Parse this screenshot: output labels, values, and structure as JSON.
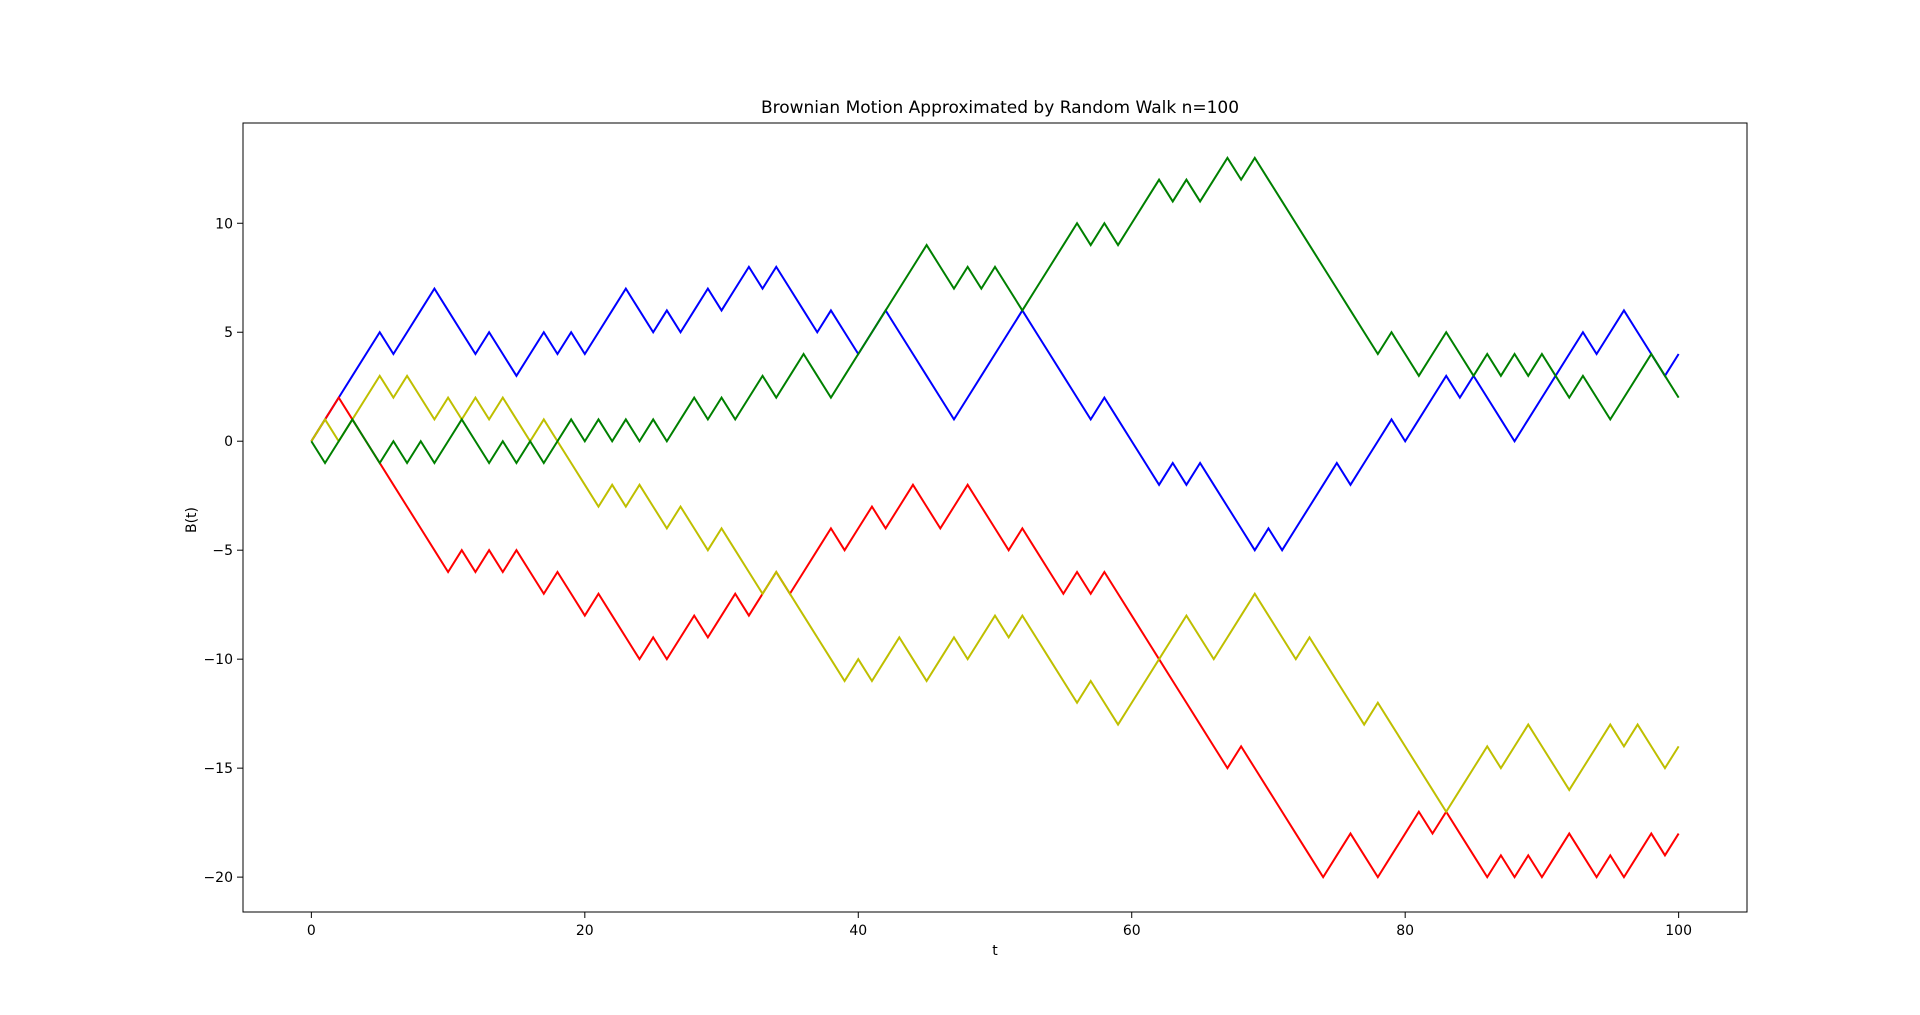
{
  "chart_data": {
    "type": "line",
    "title": "Brownian Motion Approximated by Random Walk n=100",
    "xlabel": "t",
    "ylabel": "B(t)",
    "xlim": [
      -5,
      105
    ],
    "ylim": [
      -21.6,
      14.6
    ],
    "xticks": [
      0,
      20,
      40,
      60,
      80,
      100
    ],
    "yticks": [
      10,
      5,
      0,
      -5,
      -10,
      -15,
      -20
    ],
    "xtick_labels": [
      "0",
      "20",
      "40",
      "60",
      "80",
      "100"
    ],
    "ytick_labels": [
      "10",
      "5",
      "0",
      "−5",
      "−10",
      "−15",
      "−20"
    ],
    "grid": false,
    "legend": "none",
    "series": [
      {
        "color": "#0000ff",
        "values": [
          0,
          1,
          2,
          3,
          4,
          5,
          4,
          5,
          6,
          7,
          6,
          5,
          4,
          5,
          4,
          3,
          4,
          5,
          4,
          5,
          4,
          5,
          6,
          7,
          6,
          5,
          6,
          5,
          6,
          7,
          6,
          7,
          8,
          7,
          8,
          7,
          6,
          5,
          6,
          5,
          4,
          5,
          6,
          5,
          4,
          3,
          2,
          1,
          2,
          3,
          4,
          5,
          6,
          5,
          4,
          3,
          2,
          1,
          2,
          1,
          0,
          -1,
          -2,
          -1,
          -2,
          -1,
          -2,
          -3,
          -4,
          -5,
          -4,
          -5,
          -4,
          -3,
          -2,
          -1,
          -2,
          -1,
          0,
          1,
          0,
          1,
          2,
          3,
          2,
          3,
          2,
          1,
          0,
          1,
          2,
          3,
          4,
          5,
          4,
          5,
          6,
          5,
          4,
          3,
          4
        ]
      },
      {
        "color": "#ff0000",
        "values": [
          0,
          1,
          2,
          1,
          0,
          -1,
          -2,
          -3,
          -4,
          -5,
          -6,
          -5,
          -6,
          -5,
          -6,
          -5,
          -6,
          -7,
          -6,
          -7,
          -8,
          -7,
          -8,
          -9,
          -10,
          -9,
          -10,
          -9,
          -8,
          -9,
          -8,
          -7,
          -8,
          -7,
          -6,
          -7,
          -6,
          -5,
          -4,
          -5,
          -4,
          -3,
          -4,
          -3,
          -2,
          -3,
          -4,
          -3,
          -2,
          -3,
          -4,
          -5,
          -4,
          -5,
          -6,
          -7,
          -6,
          -7,
          -6,
          -7,
          -8,
          -9,
          -10,
          -11,
          -12,
          -13,
          -14,
          -15,
          -14,
          -15,
          -16,
          -17,
          -18,
          -19,
          -20,
          -19,
          -18,
          -19,
          -20,
          -19,
          -18,
          -17,
          -18,
          -17,
          -18,
          -19,
          -20,
          -19,
          -20,
          -19,
          -20,
          -19,
          -18,
          -19,
          -20,
          -19,
          -20,
          -19,
          -18,
          -19,
          -18
        ]
      },
      {
        "color": "#bfbf00",
        "values": [
          0,
          1,
          0,
          1,
          2,
          3,
          2,
          3,
          2,
          1,
          2,
          1,
          2,
          1,
          2,
          1,
          0,
          1,
          0,
          -1,
          -2,
          -3,
          -2,
          -3,
          -2,
          -3,
          -4,
          -3,
          -4,
          -5,
          -4,
          -5,
          -6,
          -7,
          -6,
          -7,
          -8,
          -9,
          -10,
          -11,
          -10,
          -11,
          -10,
          -9,
          -10,
          -11,
          -10,
          -9,
          -10,
          -9,
          -8,
          -9,
          -8,
          -9,
          -10,
          -11,
          -12,
          -11,
          -12,
          -13,
          -12,
          -11,
          -10,
          -9,
          -8,
          -9,
          -10,
          -9,
          -8,
          -7,
          -8,
          -9,
          -10,
          -9,
          -10,
          -11,
          -12,
          -13,
          -12,
          -13,
          -14,
          -15,
          -16,
          -17,
          -16,
          -15,
          -14,
          -15,
          -14,
          -13,
          -14,
          -15,
          -16,
          -15,
          -14,
          -13,
          -14,
          -13,
          -14,
          -15,
          -14
        ]
      },
      {
        "color": "#008000",
        "values": [
          0,
          -1,
          0,
          1,
          0,
          -1,
          0,
          -1,
          0,
          -1,
          0,
          1,
          0,
          -1,
          0,
          -1,
          0,
          -1,
          0,
          1,
          0,
          1,
          0,
          1,
          0,
          1,
          0,
          1,
          2,
          1,
          2,
          1,
          2,
          3,
          2,
          3,
          4,
          3,
          2,
          3,
          4,
          5,
          6,
          7,
          8,
          9,
          8,
          7,
          8,
          7,
          8,
          7,
          6,
          7,
          8,
          9,
          10,
          9,
          10,
          9,
          10,
          11,
          12,
          11,
          12,
          11,
          12,
          13,
          12,
          13,
          12,
          11,
          10,
          9,
          8,
          7,
          6,
          5,
          4,
          5,
          4,
          3,
          4,
          5,
          4,
          3,
          4,
          3,
          4,
          3,
          4,
          3,
          2,
          3,
          2,
          1,
          2,
          3,
          4,
          3,
          2
        ]
      }
    ]
  }
}
